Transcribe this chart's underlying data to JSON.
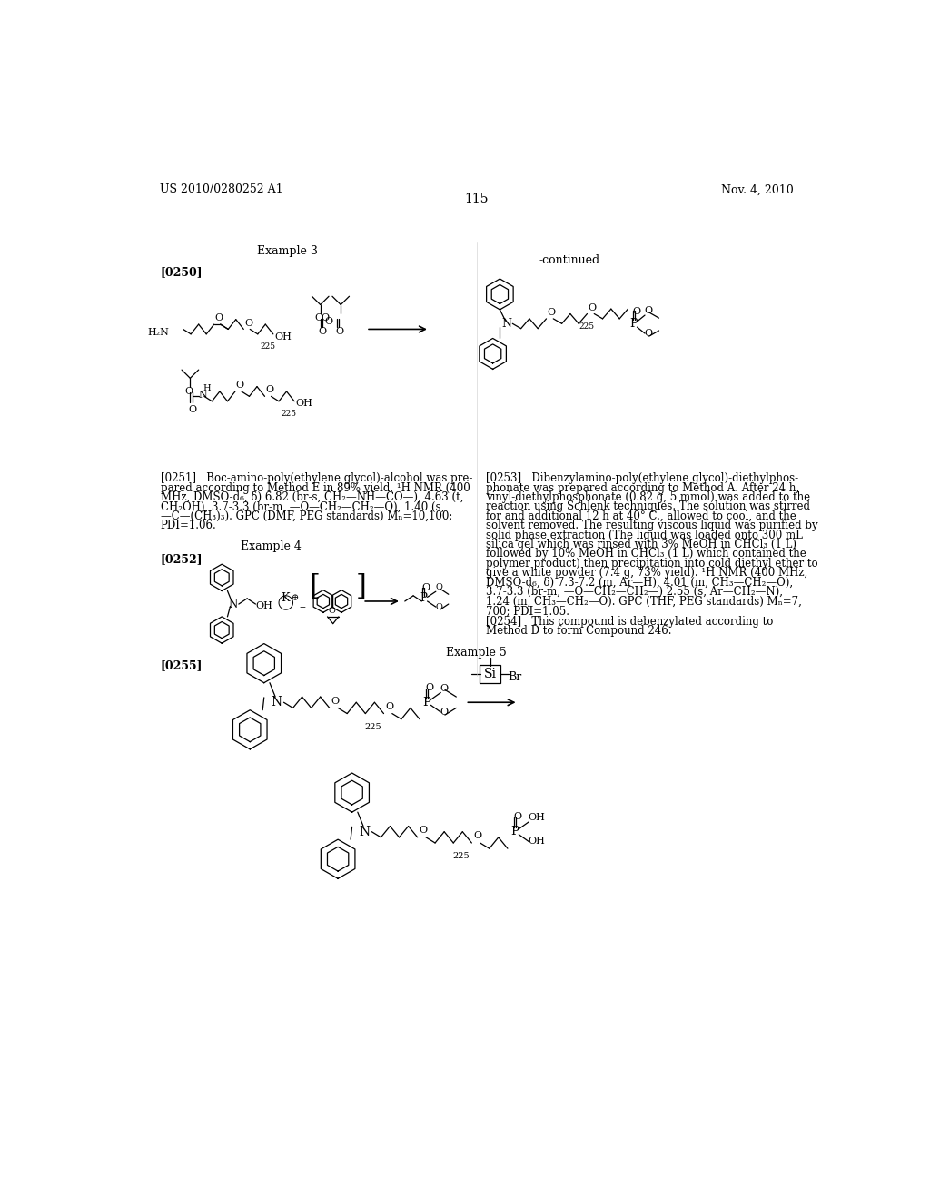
{
  "background_color": "#ffffff",
  "header_left": "US 2010/0280252 A1",
  "header_right": "Nov. 4, 2010",
  "page_number": "115",
  "example3_label": "Example 3",
  "continued_label": "-continued",
  "para0250": "[0250]",
  "para0251_lines": [
    "[0251]   Boc-amino-poly(ethylene glycol)-alcohol was pre-",
    "pared according to Method E in 89% yield. ¹H NMR (400",
    "MHz, DMSO-d₆, δ) 6.82 (br-s, CH₂—NH—CO—), 4.63 (t,",
    "CH₂OH), 3.7-3.3 (br-m, —O—CH₂—CH₂—O), 1.40 (s,",
    "—C—(CH₃)₃). GPC (DMF, PEG standards) Mₙ=10,100;",
    "PDI=1.06."
  ],
  "para0253_lines": [
    "[0253]   Dibenzylamino-poly(ethylene glycol)-diethylphos-",
    "phonate was prepared according to Method A. After 24 h,",
    "vinyl-diethylphosphonate (0.82 g, 5 mmol) was added to the",
    "reaction using Schlenk techniques. The solution was stirred",
    "for and additional 12 h at 40° C., allowed to cool, and the",
    "solvent removed. The resulting viscous liquid was purified by",
    "solid phase extraction (The liquid was loaded onto 300 mL",
    "silica gel which was rinsed with 3% MeOH in CHCl₃ (1 L)",
    "followed by 10% MeOH in CHCl₃ (1 L) which contained the",
    "polymer product) then precipitation into cold diethyl ether to",
    "give a white powder (7.4 g, 73% yield). ¹H NMR (400 MHz,",
    "DMSO-d₆, δ) 7.3-7.2 (m, Ar—H), 4.01 (m, CH₃—CH₂—O),",
    "3.7-3.3 (br-m, —O—CH₂—CH₂—) 2.55 (s, Ar—CH₂—N),",
    "1.24 (m, CH₃—CH₂—O). GPC (THF, PEG standards) Mₙ=7,",
    "700; PDI=1.05."
  ],
  "para0254_lines": [
    "[0254]   This compound is debenzylated according to",
    "Method D to form Compound 246."
  ],
  "example4_label": "Example 4",
  "para0252": "[0252]",
  "example5_label": "Example 5",
  "para0255": "[0255]"
}
